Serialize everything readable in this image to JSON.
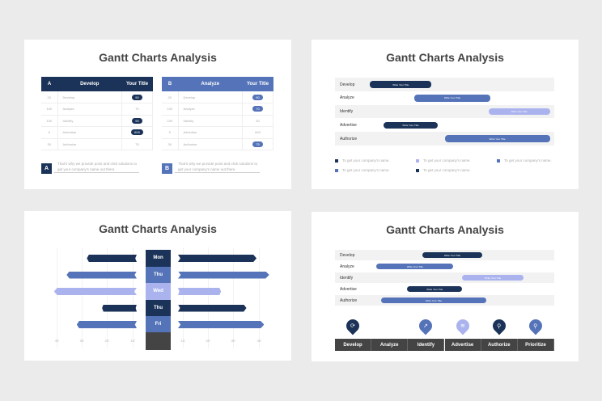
{
  "colors": {
    "dark": "#1b3358",
    "mid": "#5473b8",
    "light": "#aab3ee",
    "gray": "#444444"
  },
  "slide1": {
    "title": "Gantt Charts Analysis",
    "tables": [
      {
        "letter": "A",
        "header": "Develop",
        "col3": "Your Title",
        "color": "#1b3358",
        "rows": [
          [
            "20",
            "Develop",
            "90",
            true
          ],
          [
            "100",
            "Analyze",
            "70",
            false
          ],
          [
            "100",
            "Identify",
            "90",
            true
          ],
          [
            "5",
            "Advertise",
            "600",
            true
          ],
          [
            "30",
            "Authorize",
            "75",
            false
          ]
        ],
        "note": "That's why we provide point and click solutions to get your company's name out there."
      },
      {
        "letter": "B",
        "header": "Analyze",
        "col3": "Your Title",
        "color": "#5473b8",
        "rows": [
          [
            "20",
            "Develop",
            "90",
            true
          ],
          [
            "100",
            "Analyze",
            "70",
            true
          ],
          [
            "100",
            "Identify",
            "30",
            false
          ],
          [
            "5",
            "Advertise",
            "600",
            false
          ],
          [
            "30",
            "Authorize",
            "75",
            true
          ]
        ],
        "note": "That's why we provide point and click solutions to get your company's name out there."
      }
    ]
  },
  "slide2": {
    "title": "Gantt Charts Analysis",
    "legend": [
      {
        "text": "To get your company's name.",
        "color": "#1b3358"
      },
      {
        "text": "To get your company's name.",
        "color": "#aab3ee"
      },
      {
        "text": "To get your company's name.",
        "color": "#5473b8"
      },
      {
        "text": "To get your company's name.",
        "color": "#5473b8"
      },
      {
        "text": "To get your company's name.",
        "color": "#1b3358"
      }
    ]
  },
  "slide3": {
    "title": "Gantt Charts Analysis"
  },
  "slide4": {
    "title": "Gantt Charts Analysis",
    "categories": [
      {
        "label": "Develop",
        "icon": "refresh-icon",
        "color": "#1b3358",
        "glyph": "⟳"
      },
      {
        "label": "Analyze",
        "icon": "",
        "color": "",
        "glyph": ""
      },
      {
        "label": "Identify",
        "icon": "external-link-icon",
        "color": "#5473b8",
        "glyph": "↗"
      },
      {
        "label": "Advertise",
        "icon": "wifi-icon",
        "color": "#aab3ee",
        "glyph": "≋"
      },
      {
        "label": "Authorize",
        "icon": "search-icon",
        "color": "#1b3358",
        "glyph": "⚲"
      },
      {
        "label": "Prioritize",
        "icon": "search-icon",
        "color": "#5473b8",
        "glyph": "⚲"
      }
    ]
  },
  "chart_data": [
    {
      "type": "gantt",
      "title": "Gantt Charts Analysis",
      "unit": "percent of timeline",
      "tasks": [
        {
          "name": "Develop",
          "label": "Write Your Title",
          "start": 16,
          "end": 44,
          "color": "#1b3358"
        },
        {
          "name": "Analyze",
          "label": "Write Your Title",
          "start": 36,
          "end": 71,
          "color": "#5473b8"
        },
        {
          "name": "Identify",
          "label": "Write Your Title",
          "start": 70,
          "end": 98,
          "color": "#aab3ee"
        },
        {
          "name": "Advertise",
          "label": "Write Your Title",
          "start": 22,
          "end": 47,
          "color": "#1b3358"
        },
        {
          "name": "Authorize",
          "label": "Write Your Title",
          "start": 50,
          "end": 98,
          "color": "#5473b8"
        }
      ]
    },
    {
      "type": "bar",
      "subtype": "butterfly",
      "title": "Gantt Charts Analysis",
      "categories": [
        "Mon",
        "Thu",
        "Wed",
        "Thu",
        "Fri"
      ],
      "colors": [
        "#1b3358",
        "#5473b8",
        "#aab3ee",
        "#1b3358",
        "#5473b8"
      ],
      "left": [
        28,
        36,
        41,
        22,
        32
      ],
      "right": [
        39,
        44,
        25,
        35,
        42
      ],
      "xticks": [
        "40",
        "30",
        "20",
        "10",
        "10",
        "20",
        "30",
        "40"
      ],
      "xlim": [
        0,
        45
      ],
      "grid": true
    },
    {
      "type": "gantt",
      "title": "Gantt Charts Analysis",
      "unit": "percent of timeline",
      "tasks": [
        {
          "name": "Develop",
          "label": "Write Your Title",
          "start": 40,
          "end": 67,
          "color": "#1b3358"
        },
        {
          "name": "Analyze",
          "label": "Write Your Title",
          "start": 19,
          "end": 54,
          "color": "#5473b8"
        },
        {
          "name": "Identify",
          "label": "Write Your Title",
          "start": 58,
          "end": 86,
          "color": "#aab3ee"
        },
        {
          "name": "Advertise",
          "label": "Write Your Title",
          "start": 33,
          "end": 58,
          "color": "#1b3358"
        },
        {
          "name": "Authorize",
          "label": "Write Your Title",
          "start": 21,
          "end": 69,
          "color": "#5473b8"
        }
      ]
    }
  ]
}
